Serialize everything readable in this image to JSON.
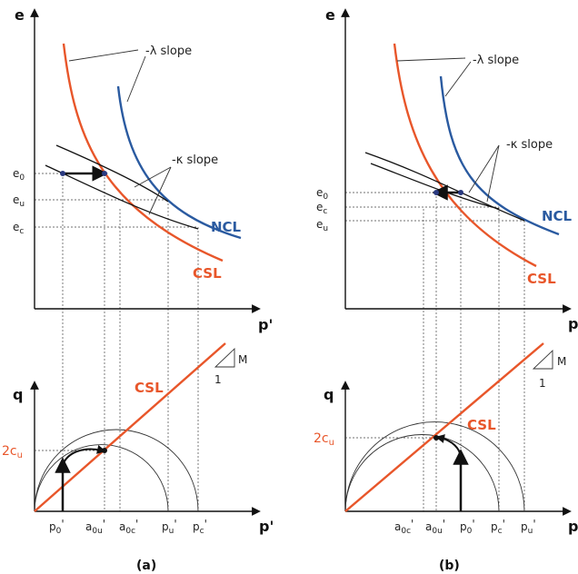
{
  "colors": {
    "csl": "#e8562a",
    "ncl": "#2a5aa0",
    "black": "#111111"
  },
  "panel_a": {
    "caption": "(a)",
    "axes": {
      "e": "e",
      "p_top": "p'",
      "q": "q",
      "p_bottom": "p'"
    },
    "annotations": {
      "lambda": "-λ slope",
      "kappa": "-κ slope"
    },
    "curves": {
      "ncl": "NCL",
      "csl_top": "CSL",
      "csl_bottom": "CSL"
    },
    "e_labels": {
      "e0": "e",
      "e0_sub": "0",
      "eu": "e",
      "eu_sub": "u",
      "ec": "e",
      "ec_sub": "c"
    },
    "q_label": {
      "main": "2c",
      "sub": "u"
    },
    "slope": {
      "m": "M",
      "one": "1"
    },
    "p_ticks": [
      {
        "main": "p",
        "sub": "0",
        "prime": "'"
      },
      {
        "main": "a",
        "sub": "0u",
        "prime": "'"
      },
      {
        "main": "a",
        "sub": "0c",
        "prime": "'"
      },
      {
        "main": "p",
        "sub": "u",
        "prime": "'"
      },
      {
        "main": "p",
        "sub": "c",
        "prime": "'"
      }
    ]
  },
  "panel_b": {
    "caption": "(b)",
    "axes": {
      "e": "e",
      "p_top": "p",
      "q": "q",
      "p_bottom": "p"
    },
    "annotations": {
      "lambda": "-λ slope",
      "kappa": "-κ slope"
    },
    "curves": {
      "ncl": "NCL",
      "csl_top": "CSL",
      "csl_bottom": "CSL"
    },
    "e_labels": {
      "e0": "e",
      "e0_sub": "0",
      "ec": "e",
      "ec_sub": "c",
      "eu": "e",
      "eu_sub": "u"
    },
    "q_label": {
      "main": "2c",
      "sub": "u"
    },
    "slope": {
      "m": "M",
      "one": "1"
    },
    "p_ticks": [
      {
        "main": "a",
        "sub": "0c",
        "prime": "'"
      },
      {
        "main": "a",
        "sub": "0u",
        "prime": "'"
      },
      {
        "main": "p",
        "sub": "0",
        "prime": "'"
      },
      {
        "main": "p",
        "sub": "c",
        "prime": "'"
      },
      {
        "main": "p",
        "sub": "u",
        "prime": "'"
      }
    ]
  }
}
